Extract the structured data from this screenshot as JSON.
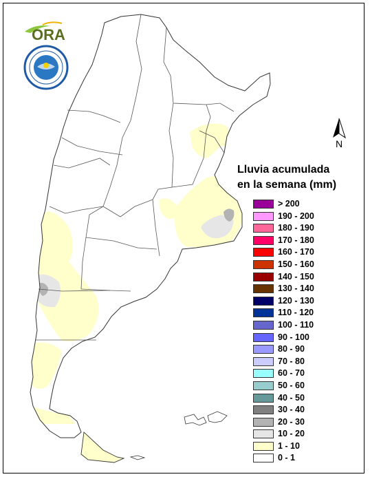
{
  "legend": {
    "title_line1": "Lluvia acumulada",
    "title_line2": "en la semana (mm)",
    "classes": [
      {
        "label": "> 200",
        "color": "#990099"
      },
      {
        "label": "190 - 200",
        "color": "#ff99ff"
      },
      {
        "label": "180 - 190",
        "color": "#ff6699"
      },
      {
        "label": "170 - 180",
        "color": "#ff0066"
      },
      {
        "label": "160 - 170",
        "color": "#ff0000"
      },
      {
        "label": "150 - 160",
        "color": "#cc3300"
      },
      {
        "label": "140 - 150",
        "color": "#990000"
      },
      {
        "label": "130 - 140",
        "color": "#663300"
      },
      {
        "label": "120 - 130",
        "color": "#000066"
      },
      {
        "label": "110 - 120",
        "color": "#003399"
      },
      {
        "label": "100 - 110",
        "color": "#6666cc"
      },
      {
        "label": "90 - 100",
        "color": "#6666ff"
      },
      {
        "label": "80 - 90",
        "color": "#9999ff"
      },
      {
        "label": "70 - 80",
        "color": "#ccccff"
      },
      {
        "label": "60 - 70",
        "color": "#99ffff"
      },
      {
        "label": "50 - 60",
        "color": "#99cccc"
      },
      {
        "label": "40 - 50",
        "color": "#669999"
      },
      {
        "label": "30 - 40",
        "color": "#808080"
      },
      {
        "label": "20 - 30",
        "color": "#b3b3b3"
      },
      {
        "label": "10 - 20",
        "color": "#e6e6e6"
      },
      {
        "label": "1 - 10",
        "color": "#ffffcc"
      },
      {
        "label": "0 - 1",
        "color": "#ffffff"
      }
    ]
  },
  "north_arrow": {
    "label": "N",
    "icon": "north-arrow-icon"
  },
  "logos": {
    "ora": {
      "text": "ORA",
      "icon": "ora-logo-icon"
    },
    "smn": {
      "icon": "smn-seal-icon"
    }
  },
  "map": {
    "icon": "argentina-map-icon"
  }
}
